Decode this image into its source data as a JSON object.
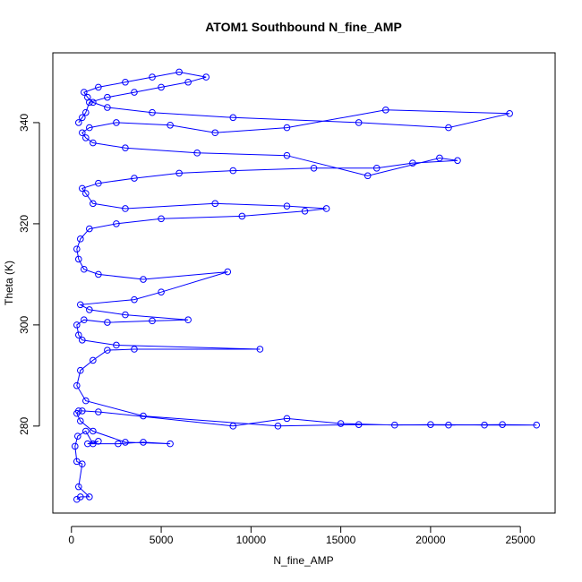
{
  "chart_data": {
    "type": "scatter",
    "title": "ATOM1 Southbound N_fine_AMP",
    "x_label": "N_fine_AMP",
    "y_label": "Theta (K)",
    "color": "blue",
    "lines": true,
    "xlim": [
      -1036,
      26936
    ],
    "ylim": [
      262.8,
      353.8
    ],
    "xticks": [
      0,
      5000,
      10000,
      15000,
      20000,
      25000
    ],
    "yticks": [
      280,
      300,
      320,
      340
    ],
    "x": [
      300,
      500,
      1000,
      400,
      600,
      300,
      200,
      350,
      800,
      1200,
      1500,
      900,
      2600,
      4000,
      5500,
      3000,
      1200,
      500,
      300,
      400,
      600,
      1500,
      9000,
      12000,
      15000,
      18000,
      20000,
      23000,
      25900,
      24000,
      21000,
      16000,
      11500,
      4000,
      800,
      300,
      500,
      1200,
      2000,
      3500,
      10500,
      2500,
      600,
      400,
      300,
      700,
      2000,
      4500,
      6500,
      3000,
      1000,
      500,
      3500,
      5000,
      8700,
      4000,
      1500,
      700,
      400,
      300,
      500,
      1000,
      2500,
      5000,
      9500,
      13000,
      14200,
      12000,
      8000,
      3000,
      1200,
      800,
      600,
      1500,
      3500,
      6000,
      9000,
      13500,
      17000,
      19000,
      21500,
      20500,
      16500,
      12000,
      7000,
      3000,
      1200,
      800,
      600,
      1000,
      2500,
      5500,
      8000,
      12000,
      17500,
      24400,
      21000,
      16000,
      9000,
      4500,
      2000,
      1200,
      900,
      700,
      1500,
      3000,
      4500,
      6000,
      7500,
      6500,
      5000,
      3500,
      2000,
      1000,
      800,
      600,
      400
    ],
    "y": [
      265.5,
      266,
      266,
      268,
      272.5,
      273,
      276,
      278,
      279,
      276.5,
      277,
      276.5,
      276.5,
      276.8,
      276.5,
      276.8,
      279,
      281,
      282.5,
      283,
      283,
      282.8,
      280,
      281.5,
      280.5,
      280.2,
      280.3,
      280.2,
      280.2,
      280.3,
      280.2,
      280.3,
      280,
      282,
      285,
      288,
      291,
      293,
      295,
      295.2,
      295.2,
      296,
      297,
      298,
      300,
      301,
      300.5,
      300.8,
      301,
      302,
      303,
      304,
      305,
      306.5,
      310.5,
      309,
      310,
      311,
      313,
      315,
      317,
      319,
      320,
      321,
      321.5,
      322.5,
      323,
      323.5,
      324,
      323,
      324,
      326,
      327,
      328,
      329,
      330,
      330.5,
      331,
      331,
      332,
      332.5,
      333,
      329.5,
      333.5,
      334,
      335,
      336,
      337,
      338,
      339,
      340,
      339.5,
      338,
      339,
      342.5,
      341.8,
      339,
      340,
      341,
      342,
      343,
      344,
      345,
      346,
      347,
      348,
      349,
      350,
      349,
      348,
      347,
      346,
      345,
      344,
      342,
      341,
      340
    ]
  }
}
